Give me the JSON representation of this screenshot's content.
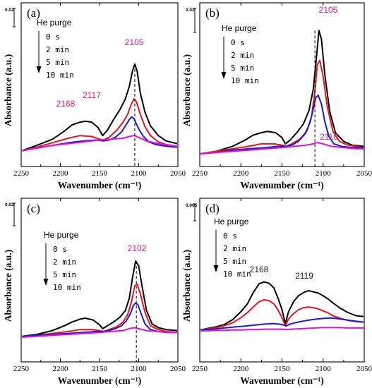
{
  "chart_data": [
    {
      "panel": "(a)",
      "type": "line",
      "xlabel": "Wavenumber",
      "xunit": "(cm⁻¹)",
      "ylabel": "Absorbance (a.u.)",
      "xlim": [
        2250,
        2050
      ],
      "x_reversed": true,
      "xticks": [
        2250,
        2200,
        2150,
        2100,
        2050
      ],
      "xtick_labels": [
        "2250",
        "2200",
        "2150",
        "2100",
        "2050"
      ],
      "yrange": [
        0,
        0.11
      ],
      "scale_bar": "0.02",
      "scale_bar_value": 0.02,
      "legend_title": "He purge",
      "legend": [
        "0 s",
        "2 min",
        "5 min",
        "10 min"
      ],
      "annotations": [
        {
          "text": "2168",
          "x": 2168,
          "color": "#e0178a"
        },
        {
          "text": "2117",
          "x": 2117,
          "color": "#e0178a"
        },
        {
          "text": "2105",
          "x": 2105,
          "color": "#e0178a"
        }
      ],
      "dashed_line_x": 2105,
      "series": [
        {
          "name": "0 s",
          "color": "#000000",
          "x": [
            2250,
            2230,
            2210,
            2195,
            2185,
            2175,
            2168,
            2160,
            2152,
            2146,
            2140,
            2132,
            2124,
            2117,
            2112,
            2108,
            2105,
            2102,
            2098,
            2092,
            2085,
            2075,
            2065,
            2050
          ],
          "values": [
            0.001,
            0.007,
            0.014,
            0.023,
            0.03,
            0.033,
            0.034,
            0.033,
            0.027,
            0.018,
            0.024,
            0.036,
            0.047,
            0.059,
            0.073,
            0.09,
            0.098,
            0.09,
            0.066,
            0.044,
            0.029,
            0.018,
            0.012,
            0.009
          ]
        },
        {
          "name": "2 min",
          "color": "#e8141e",
          "x": [
            2250,
            2230,
            2210,
            2190,
            2175,
            2160,
            2150,
            2145,
            2138,
            2128,
            2120,
            2114,
            2110,
            2106,
            2103,
            2098,
            2092,
            2085,
            2075,
            2065,
            2050
          ],
          "values": [
            0.001,
            0.005,
            0.01,
            0.015,
            0.018,
            0.017,
            0.014,
            0.013,
            0.016,
            0.024,
            0.033,
            0.042,
            0.052,
            0.059,
            0.056,
            0.042,
            0.028,
            0.018,
            0.011,
            0.008,
            0.006
          ]
        },
        {
          "name": "5 min",
          "color": "#1a1ad8",
          "x": [
            2250,
            2230,
            2210,
            2190,
            2170,
            2155,
            2145,
            2138,
            2130,
            2122,
            2116,
            2112,
            2109,
            2106,
            2103,
            2099,
            2094,
            2087,
            2078,
            2065,
            2050
          ],
          "values": [
            0.001,
            0.004,
            0.007,
            0.01,
            0.012,
            0.013,
            0.012,
            0.013,
            0.016,
            0.022,
            0.03,
            0.036,
            0.039,
            0.037,
            0.031,
            0.024,
            0.017,
            0.011,
            0.008,
            0.006,
            0.005
          ]
        },
        {
          "name": "10 min",
          "color": "#e011d8",
          "x": [
            2250,
            2230,
            2210,
            2190,
            2170,
            2150,
            2135,
            2120,
            2112,
            2106,
            2100,
            2090,
            2075,
            2060,
            2050
          ],
          "values": [
            0.001,
            0.004,
            0.007,
            0.009,
            0.011,
            0.013,
            0.014,
            0.015,
            0.017,
            0.018,
            0.016,
            0.012,
            0.009,
            0.007,
            0.006
          ]
        }
      ]
    },
    {
      "panel": "(b)",
      "type": "line",
      "xlabel": "Wavenumber",
      "xunit": "(cm⁻¹)",
      "ylabel": "Absorbance (a.u.)",
      "xlim": [
        2250,
        2050
      ],
      "x_reversed": true,
      "xticks": [
        2250,
        2200,
        2150,
        2100,
        2050
      ],
      "xtick_labels": [
        "2250",
        "2200",
        "2150",
        "2100",
        "2050"
      ],
      "yrange": [
        0,
        0.11
      ],
      "scale_bar": "0.02",
      "scale_bar_value": 0.02,
      "legend_title": "He purge",
      "legend": [
        "0 s",
        "2 min",
        "5 min",
        "10 min"
      ],
      "annotations": [
        {
          "text": "2105",
          "x": 2105,
          "color": "#e0178a"
        },
        {
          "text": "2110",
          "x": 2110,
          "color": "#e0178a"
        }
      ],
      "dashed_line_x": 2110,
      "series": [
        {
          "name": "0 s",
          "color": "#000000",
          "x": [
            2250,
            2230,
            2210,
            2195,
            2185,
            2175,
            2168,
            2158,
            2150,
            2146,
            2140,
            2132,
            2124,
            2117,
            2112,
            2108,
            2105,
            2102,
            2098,
            2092,
            2085,
            2075,
            2065,
            2050
          ],
          "values": [
            0.0,
            0.002,
            0.006,
            0.011,
            0.015,
            0.017,
            0.018,
            0.017,
            0.013,
            0.008,
            0.011,
            0.017,
            0.024,
            0.035,
            0.052,
            0.078,
            0.099,
            0.092,
            0.064,
            0.034,
            0.017,
            0.01,
            0.007,
            0.006
          ]
        },
        {
          "name": "2 min",
          "color": "#e8141e",
          "x": [
            2250,
            2230,
            2210,
            2190,
            2175,
            2160,
            2150,
            2145,
            2138,
            2128,
            2120,
            2114,
            2110,
            2107,
            2104,
            2100,
            2095,
            2088,
            2080,
            2070,
            2060,
            2050
          ],
          "values": [
            0.0,
            0.002,
            0.004,
            0.006,
            0.008,
            0.008,
            0.007,
            0.006,
            0.008,
            0.012,
            0.018,
            0.03,
            0.05,
            0.072,
            0.075,
            0.062,
            0.038,
            0.018,
            0.01,
            0.007,
            0.006,
            0.005
          ]
        },
        {
          "name": "5 min",
          "color": "#1a1ad8",
          "x": [
            2250,
            2230,
            2210,
            2190,
            2170,
            2155,
            2145,
            2138,
            2130,
            2122,
            2116,
            2112,
            2109,
            2106,
            2102,
            2098,
            2093,
            2087,
            2078,
            2065,
            2050
          ],
          "values": [
            0.0,
            0.001,
            0.003,
            0.004,
            0.005,
            0.006,
            0.006,
            0.007,
            0.01,
            0.016,
            0.025,
            0.036,
            0.045,
            0.047,
            0.04,
            0.026,
            0.014,
            0.008,
            0.006,
            0.005,
            0.005
          ]
        },
        {
          "name": "10 min",
          "color": "#e011d8",
          "x": [
            2250,
            2230,
            2210,
            2190,
            2170,
            2150,
            2135,
            2120,
            2112,
            2107,
            2100,
            2090,
            2075,
            2060,
            2050
          ],
          "values": [
            0.0,
            0.001,
            0.002,
            0.003,
            0.004,
            0.005,
            0.006,
            0.007,
            0.008,
            0.009,
            0.008,
            0.006,
            0.005,
            0.004,
            0.004
          ]
        }
      ]
    },
    {
      "panel": "(c)",
      "type": "line",
      "xlabel": "Wavenumber",
      "xunit": "(cm⁻¹)",
      "ylabel": "Absorbance (a.u.)",
      "xlim": [
        2250,
        2050
      ],
      "x_reversed": true,
      "xticks": [
        2250,
        2200,
        2150,
        2100,
        2050
      ],
      "xtick_labels": [
        "2250",
        "2200",
        "2150",
        "2100",
        "2050"
      ],
      "yrange": [
        0,
        0.11
      ],
      "scale_bar": "0.02",
      "scale_bar_value": 0.02,
      "legend_title": "He purge",
      "legend": [
        "0 s",
        "2 min",
        "5 min",
        "10 min"
      ],
      "annotations": [
        {
          "text": "2102",
          "x": 2102,
          "color": "#e0178a"
        }
      ],
      "dashed_line_x": 2103,
      "series": [
        {
          "name": "0 s",
          "color": "#000000",
          "x": [
            2250,
            2230,
            2210,
            2195,
            2185,
            2175,
            2168,
            2158,
            2150,
            2146,
            2140,
            2132,
            2124,
            2117,
            2112,
            2108,
            2104,
            2100,
            2096,
            2090,
            2083,
            2075,
            2065,
            2050
          ],
          "values": [
            0.001,
            0.003,
            0.007,
            0.012,
            0.016,
            0.019,
            0.02,
            0.018,
            0.013,
            0.009,
            0.012,
            0.016,
            0.021,
            0.028,
            0.041,
            0.062,
            0.08,
            0.075,
            0.055,
            0.028,
            0.014,
            0.01,
            0.008,
            0.007
          ]
        },
        {
          "name": "2 min",
          "color": "#e8141e",
          "x": [
            2250,
            2230,
            2210,
            2190,
            2175,
            2160,
            2150,
            2145,
            2138,
            2128,
            2120,
            2114,
            2109,
            2105,
            2102,
            2098,
            2092,
            2085,
            2075,
            2065,
            2050
          ],
          "values": [
            0.001,
            0.002,
            0.004,
            0.006,
            0.008,
            0.008,
            0.007,
            0.006,
            0.008,
            0.011,
            0.016,
            0.024,
            0.038,
            0.054,
            0.056,
            0.046,
            0.026,
            0.012,
            0.008,
            0.006,
            0.005
          ]
        },
        {
          "name": "5 min",
          "color": "#1a1ad8",
          "x": [
            2250,
            2230,
            2210,
            2190,
            2170,
            2155,
            2145,
            2138,
            2130,
            2122,
            2116,
            2111,
            2107,
            2104,
            2101,
            2097,
            2092,
            2085,
            2075,
            2065,
            2050
          ],
          "values": [
            0.001,
            0.002,
            0.003,
            0.004,
            0.005,
            0.006,
            0.006,
            0.007,
            0.009,
            0.012,
            0.017,
            0.024,
            0.033,
            0.036,
            0.034,
            0.025,
            0.014,
            0.008,
            0.006,
            0.005,
            0.005
          ]
        },
        {
          "name": "10 min",
          "color": "#e011d8",
          "x": [
            2250,
            2230,
            2210,
            2190,
            2170,
            2150,
            2135,
            2120,
            2112,
            2106,
            2100,
            2090,
            2075,
            2060,
            2050
          ],
          "values": [
            0.0,
            0.001,
            0.002,
            0.003,
            0.004,
            0.005,
            0.006,
            0.007,
            0.009,
            0.01,
            0.009,
            0.007,
            0.006,
            0.005,
            0.005
          ]
        }
      ]
    },
    {
      "panel": "(d)",
      "type": "line",
      "xlabel": "Wavenumber",
      "xunit": "(cm⁻¹)",
      "ylabel": "Absorbance (a.u.)",
      "xlim": [
        2250,
        2050
      ],
      "x_reversed": true,
      "xticks": [
        2250,
        2200,
        2150,
        2100,
        2050
      ],
      "xtick_labels": [
        "2250",
        "2200",
        "2150",
        "2100",
        "2050"
      ],
      "yrange": [
        0,
        0.03
      ],
      "scale_bar": "0.005",
      "scale_bar_value": 0.005,
      "legend_title": "He purge",
      "legend": [
        "0 s",
        "2 min",
        "5 min",
        "10 min"
      ],
      "annotations": [
        {
          "text": "2168",
          "x": 2168,
          "color": "#222222"
        },
        {
          "text": "2119",
          "x": 2119,
          "color": "#222222"
        }
      ],
      "series": [
        {
          "name": "0 s",
          "color": "#000000",
          "x": [
            2250,
            2240,
            2230,
            2220,
            2210,
            2200,
            2192,
            2185,
            2178,
            2172,
            2166,
            2160,
            2155,
            2150,
            2146,
            2142,
            2136,
            2130,
            2124,
            2118,
            2112,
            2106,
            2100,
            2094,
            2088,
            2080,
            2070,
            2060,
            2050
          ],
          "values": [
            0.0004,
            0.0008,
            0.0012,
            0.0018,
            0.003,
            0.005,
            0.007,
            0.0098,
            0.012,
            0.0125,
            0.0122,
            0.011,
            0.0085,
            0.0055,
            0.002,
            0.005,
            0.0075,
            0.009,
            0.0098,
            0.0103,
            0.01,
            0.0097,
            0.009,
            0.0082,
            0.0072,
            0.006,
            0.0048,
            0.004,
            0.0038
          ]
        },
        {
          "name": "2 min",
          "color": "#e8141e",
          "x": [
            2250,
            2240,
            2230,
            2220,
            2210,
            2200,
            2192,
            2185,
            2178,
            2172,
            2166,
            2160,
            2155,
            2150,
            2146,
            2142,
            2136,
            2130,
            2124,
            2118,
            2112,
            2106,
            2100,
            2094,
            2088,
            2080,
            2070,
            2060,
            2050
          ],
          "values": [
            0.0004,
            0.0007,
            0.001,
            0.0015,
            0.0022,
            0.0035,
            0.0048,
            0.0062,
            0.0075,
            0.008,
            0.0078,
            0.007,
            0.0055,
            0.0035,
            0.0015,
            0.0032,
            0.0045,
            0.0055,
            0.006,
            0.0062,
            0.006,
            0.0057,
            0.0052,
            0.0047,
            0.004,
            0.0034,
            0.0028,
            0.0025,
            0.0024
          ]
        },
        {
          "name": "5 min",
          "color": "#1a1ad8",
          "x": [
            2250,
            2240,
            2230,
            2220,
            2210,
            2200,
            2190,
            2180,
            2170,
            2160,
            2150,
            2145,
            2140,
            2130,
            2120,
            2110,
            2100,
            2090,
            2080,
            2070,
            2060,
            2050
          ],
          "values": [
            0.0004,
            0.0005,
            0.0007,
            0.0009,
            0.0011,
            0.0013,
            0.0015,
            0.0017,
            0.0019,
            0.002,
            0.0018,
            0.0014,
            0.0019,
            0.0024,
            0.0028,
            0.0031,
            0.0033,
            0.0034,
            0.0032,
            0.0029,
            0.0026,
            0.0024
          ]
        },
        {
          "name": "10 min",
          "color": "#e011d8",
          "x": [
            2250,
            2240,
            2230,
            2220,
            2210,
            2200,
            2190,
            2180,
            2170,
            2160,
            2150,
            2145,
            2140,
            2130,
            2120,
            2110,
            2100,
            2090,
            2080,
            2070,
            2060,
            2050
          ],
          "values": [
            0.0002,
            0.0002,
            0.0003,
            0.0003,
            0.0004,
            0.0004,
            0.0005,
            0.0005,
            0.0006,
            0.0006,
            0.0006,
            0.0005,
            0.0006,
            0.0007,
            0.0008,
            0.0009,
            0.001,
            0.001,
            0.001,
            0.0009,
            0.0009,
            0.0009
          ]
        }
      ]
    }
  ]
}
